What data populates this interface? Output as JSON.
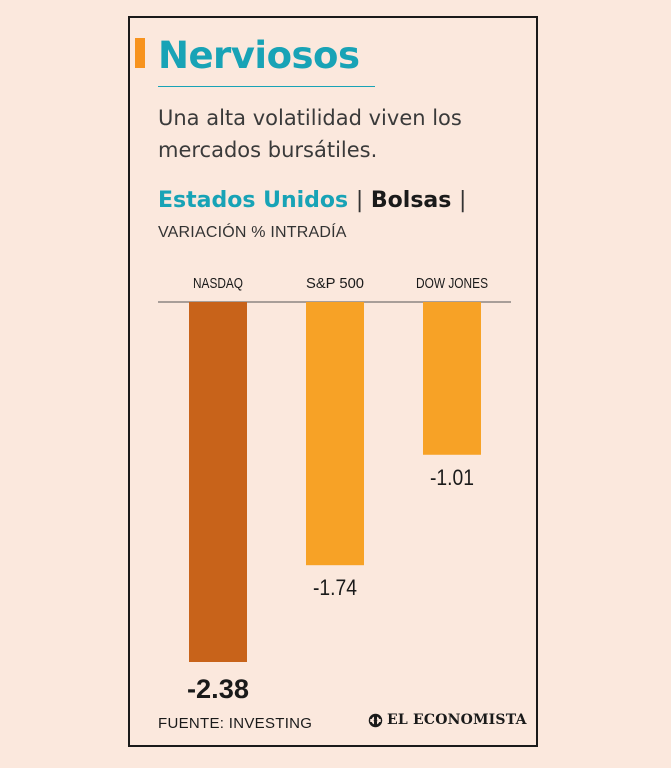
{
  "header": {
    "title": "Nerviosos",
    "subtitle": "Una alta volatilidad viven los mercados bursátiles.",
    "country": "Estados Unidos",
    "separator": "|",
    "category": "Bolsas",
    "measure": "VARIACIÓN % INTRADÍA"
  },
  "footer": {
    "source": "FUENTE: INVESTING",
    "logo_text": "EL ECONOMISTA"
  },
  "colors": {
    "title": "#18a3b6",
    "accent": "#f7931e",
    "bar_highlight": "#c8631a",
    "bar_default": "#f7a226",
    "background": "#fbe8dd"
  },
  "chart_data": {
    "type": "bar",
    "orientation": "vertical-negative",
    "categories": [
      "NASDAQ",
      "S&P 500",
      "DOW JONES"
    ],
    "values": [
      -2.38,
      -1.74,
      -1.01
    ],
    "value_labels": [
      "-2.38",
      "-1.74",
      "-1.01"
    ],
    "highlight_index": 0,
    "ylim": [
      -2.38,
      0
    ],
    "grid": false,
    "legend": "none"
  }
}
